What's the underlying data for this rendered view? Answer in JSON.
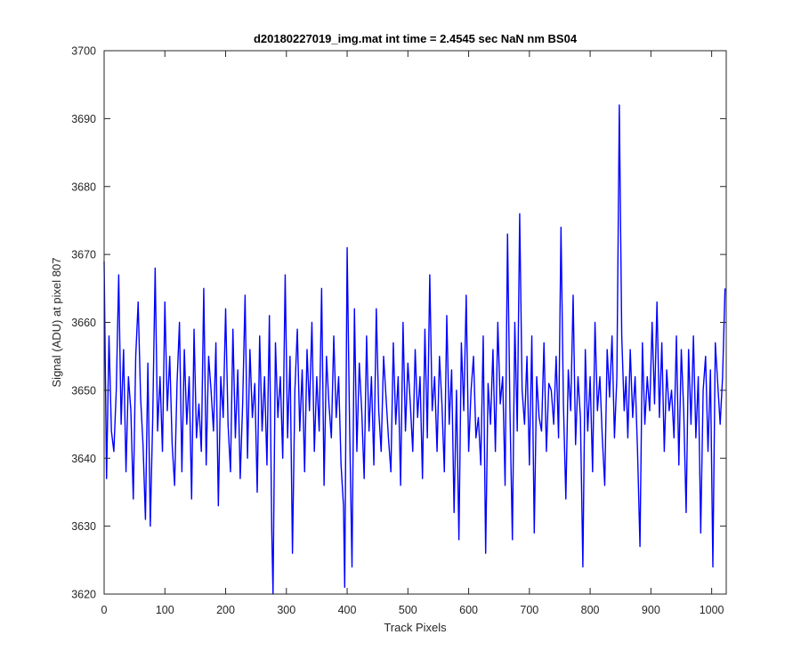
{
  "chart_data": {
    "type": "line",
    "title": "d20180227019_img.mat int time = 2.4545 sec  NaN nm BS04",
    "xlabel": "Track Pixels",
    "ylabel": "Signal (ADU) at pixel 807",
    "xlim": [
      0,
      1024
    ],
    "ylim": [
      3620,
      3700
    ],
    "xticks": [
      0,
      100,
      200,
      300,
      400,
      500,
      600,
      700,
      800,
      900,
      1000
    ],
    "yticks": [
      3620,
      3630,
      3640,
      3650,
      3660,
      3670,
      3680,
      3690,
      3700
    ],
    "grid": false,
    "legend": "none",
    "color": "#0000ff",
    "series": [
      {
        "x": [
          0,
          4,
          8,
          12,
          16,
          20,
          24,
          28,
          32,
          36,
          40,
          44,
          48,
          52,
          56,
          60,
          64,
          68,
          72,
          76,
          80,
          84,
          88,
          92,
          96,
          100,
          104,
          108,
          112,
          116,
          120,
          124,
          128,
          132,
          136,
          140,
          144,
          148,
          152,
          156,
          160,
          164,
          168,
          172,
          176,
          180,
          184,
          188,
          192,
          196,
          200,
          204,
          208,
          212,
          216,
          220,
          224,
          228,
          232,
          236,
          240,
          244,
          248,
          252,
          256,
          260,
          264,
          268,
          272,
          276,
          278,
          282,
          286,
          290,
          294,
          298,
          302,
          306,
          310,
          314,
          318,
          322,
          326,
          330,
          334,
          338,
          342,
          346,
          350,
          354,
          358,
          362,
          366,
          370,
          374,
          378,
          382,
          386,
          390,
          394,
          396,
          400,
          404,
          408,
          412,
          416,
          420,
          424,
          428,
          432,
          436,
          440,
          444,
          448,
          452,
          456,
          460,
          464,
          468,
          472,
          476,
          480,
          484,
          488,
          492,
          496,
          500,
          504,
          508,
          512,
          516,
          520,
          524,
          528,
          532,
          536,
          540,
          544,
          548,
          552,
          556,
          560,
          564,
          568,
          572,
          576,
          580,
          584,
          588,
          592,
          596,
          600,
          604,
          608,
          612,
          616,
          620,
          624,
          628,
          632,
          636,
          640,
          644,
          648,
          652,
          656,
          660,
          664,
          668,
          672,
          676,
          680,
          684,
          688,
          692,
          696,
          700,
          704,
          708,
          712,
          716,
          720,
          724,
          728,
          732,
          736,
          740,
          744,
          748,
          752,
          756,
          760,
          764,
          768,
          772,
          776,
          780,
          784,
          788,
          792,
          796,
          800,
          804,
          808,
          812,
          816,
          820,
          824,
          828,
          832,
          836,
          840,
          844,
          848,
          852,
          856,
          859,
          862,
          866,
          870,
          874,
          878,
          882,
          886,
          890,
          894,
          898,
          902,
          906,
          910,
          914,
          918,
          922,
          926,
          930,
          934,
          938,
          942,
          946,
          950,
          954,
          958,
          962,
          966,
          970,
          974,
          978,
          982,
          986,
          990,
          994,
          998,
          1002,
          1006,
          1010,
          1014,
          1018,
          1022
        ],
        "y": [
          3669,
          3637,
          3658,
          3644,
          3641,
          3650,
          3667,
          3645,
          3656,
          3638,
          3652,
          3647,
          3634,
          3655,
          3663,
          3649,
          3642,
          3631,
          3654,
          3630,
          3646,
          3668,
          3644,
          3652,
          3641,
          3663,
          3647,
          3655,
          3642,
          3636,
          3651,
          3660,
          3638,
          3656,
          3645,
          3652,
          3634,
          3659,
          3643,
          3648,
          3641,
          3665,
          3639,
          3655,
          3650,
          3644,
          3657,
          3633,
          3652,
          3646,
          3662,
          3645,
          3638,
          3659,
          3643,
          3653,
          3637,
          3648,
          3664,
          3640,
          3656,
          3646,
          3651,
          3635,
          3658,
          3644,
          3652,
          3639,
          3661,
          3629,
          3620,
          3657,
          3646,
          3652,
          3640,
          3667,
          3643,
          3655,
          3626,
          3650,
          3659,
          3644,
          3653,
          3638,
          3656,
          3647,
          3660,
          3641,
          3652,
          3644,
          3665,
          3636,
          3655,
          3648,
          3643,
          3658,
          3646,
          3652,
          3639,
          3633,
          3621,
          3671,
          3645,
          3624,
          3662,
          3641,
          3654,
          3647,
          3637,
          3658,
          3644,
          3652,
          3639,
          3662,
          3647,
          3641,
          3655,
          3649,
          3643,
          3638,
          3657,
          3645,
          3652,
          3636,
          3660,
          3644,
          3654,
          3648,
          3641,
          3656,
          3646,
          3652,
          3637,
          3659,
          3643,
          3667,
          3647,
          3652,
          3641,
          3655,
          3648,
          3638,
          3661,
          3645,
          3653,
          3632,
          3650,
          3628,
          3657,
          3647,
          3664,
          3641,
          3650,
          3655,
          3643,
          3646,
          3639,
          3658,
          3626,
          3651,
          3645,
          3656,
          3641,
          3660,
          3648,
          3652,
          3636,
          3673,
          3647,
          3628,
          3660,
          3644,
          3676,
          3650,
          3645,
          3655,
          3639,
          3658,
          3629,
          3652,
          3646,
          3644,
          3657,
          3641,
          3651,
          3650,
          3645,
          3655,
          3643,
          3674,
          3648,
          3634,
          3653,
          3647,
          3664,
          3642,
          3652,
          3646,
          3624,
          3656,
          3644,
          3652,
          3638,
          3660,
          3647,
          3652,
          3643,
          3636,
          3656,
          3649,
          3658,
          3643,
          3652,
          3692,
          3658,
          3647,
          3652,
          3643,
          3656,
          3646,
          3652,
          3641,
          3627,
          3657,
          3645,
          3652,
          3647,
          3660,
          3648,
          3663,
          3646,
          3657,
          3641,
          3653,
          3647,
          3650,
          3643,
          3658,
          3639,
          3656,
          3647,
          3632,
          3656,
          3645,
          3658,
          3643,
          3652,
          3629,
          3650,
          3655,
          3641,
          3653,
          3624,
          3657,
          3651,
          3645,
          3652,
          3665
        ]
      }
    ]
  }
}
